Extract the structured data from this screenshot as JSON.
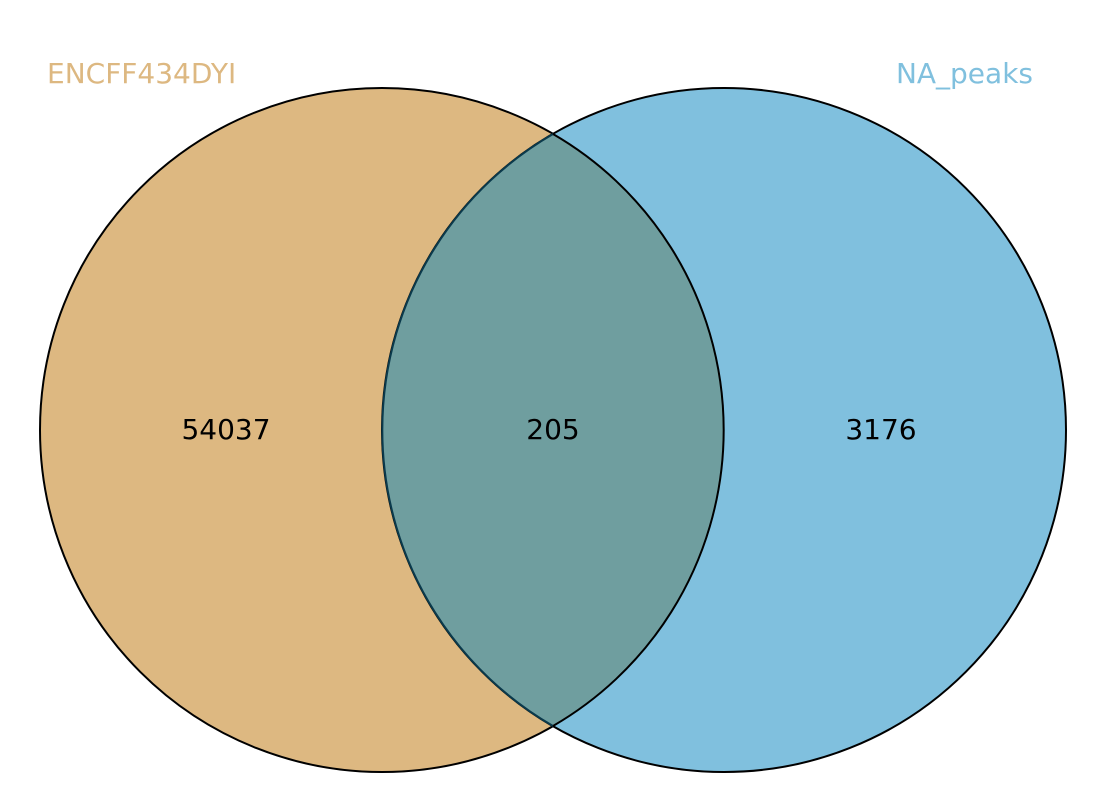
{
  "chart_data": {
    "type": "venn",
    "sets": [
      {
        "name": "ENCFF434DYI",
        "color": "#ddb881"
      },
      {
        "name": "NA_peaks",
        "color": "#80c0de"
      }
    ],
    "regions": {
      "only_a": "54037",
      "intersection": "205",
      "only_b": "3176"
    },
    "colors": {
      "set_a_fill": "#ddb881",
      "set_b_fill": "#80c0de",
      "overlap_fill": "#6f9e9f",
      "outline": "#000000",
      "overlap_outline": "#0b3a4c"
    }
  }
}
